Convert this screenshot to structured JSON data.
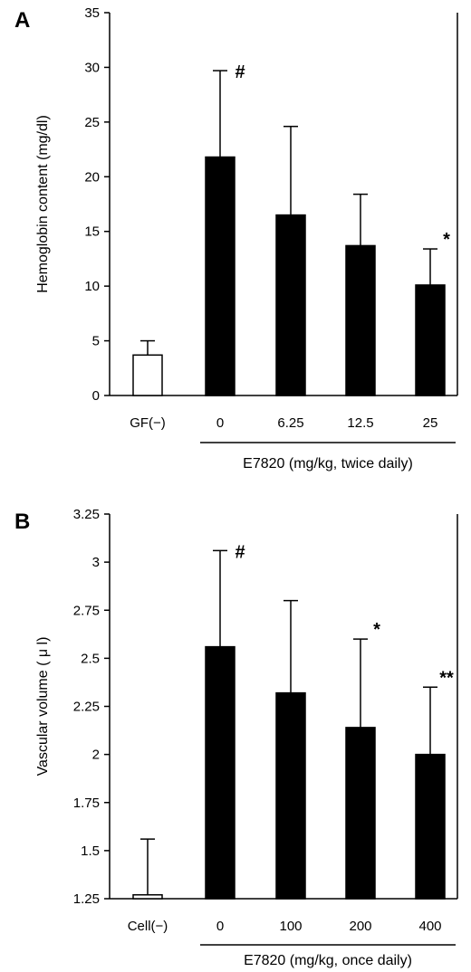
{
  "chart_data": [
    {
      "panel_label": "A",
      "type": "bar",
      "ylabel": "Hemoglobin content (mg/dl)",
      "xlabel": "E7820 (mg/kg, twice daily)",
      "categories": [
        "GF(−)",
        "0",
        "6.25",
        "12.5",
        "25"
      ],
      "values": [
        3.7,
        21.8,
        16.5,
        13.7,
        10.1
      ],
      "error_upper": [
        5.0,
        29.7,
        24.6,
        18.4,
        13.4
      ],
      "fills": [
        "white",
        "black",
        "black",
        "black",
        "black"
      ],
      "annotations": [
        "",
        "#",
        "",
        "",
        "*"
      ],
      "ylim": [
        0,
        35
      ],
      "yticks": [
        0,
        5,
        10,
        15,
        20,
        25,
        30,
        35
      ],
      "ytick_labels": [
        "0",
        "5",
        "10",
        "15",
        "20",
        "25",
        "30",
        "35"
      ],
      "bracket_from_category": 1
    },
    {
      "panel_label": "B",
      "type": "bar",
      "ylabel": "Vascular volume ( μ l)",
      "xlabel": "E7820 (mg/kg, once daily)",
      "categories": [
        "Cell(−)",
        "0",
        "100",
        "200",
        "400"
      ],
      "values": [
        1.27,
        2.56,
        2.32,
        2.14,
        2.0
      ],
      "error_upper": [
        1.56,
        3.06,
        2.8,
        2.6,
        2.35
      ],
      "fills": [
        "white",
        "black",
        "black",
        "black",
        "black"
      ],
      "annotations": [
        "",
        "#",
        "",
        "*",
        "**"
      ],
      "ylim": [
        1.25,
        3.25
      ],
      "yticks": [
        1.25,
        1.5,
        1.75,
        2,
        2.25,
        2.5,
        2.75,
        3,
        3.25
      ],
      "ytick_labels": [
        "1.25",
        "1.5",
        "1.75",
        "2",
        "2.25",
        "2.5",
        "2.75",
        "3",
        "3.25"
      ],
      "bracket_from_category": 1
    }
  ]
}
